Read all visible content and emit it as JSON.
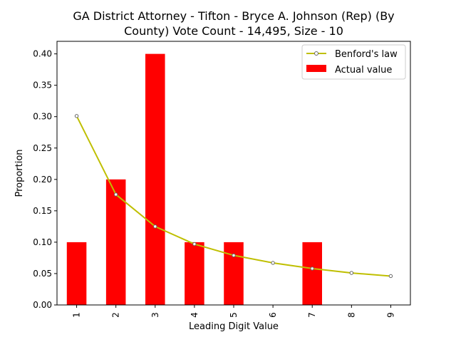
{
  "chart_data": {
    "type": "bar",
    "title_line1": "GA District Attorney - Tifton - Bryce A. Johnson (Rep) (By",
    "title_line2": "County) Vote Count - 14,495, Size - 10",
    "xlabel": "Leading Digit Value",
    "ylabel": "Proportion",
    "categories": [
      "1",
      "2",
      "3",
      "4",
      "5",
      "6",
      "7",
      "8",
      "9"
    ],
    "ylim": [
      0,
      0.42
    ],
    "yticks": [
      "0.00",
      "0.05",
      "0.10",
      "0.15",
      "0.20",
      "0.25",
      "0.30",
      "0.35",
      "0.40"
    ],
    "legend_position": "top-right",
    "series": [
      {
        "name": "Benford's law",
        "kind": "line",
        "color": "#bfbf00",
        "values": [
          0.301,
          0.176,
          0.125,
          0.097,
          0.079,
          0.067,
          0.058,
          0.051,
          0.046
        ]
      },
      {
        "name": "Actual value",
        "kind": "bar",
        "color": "#ff0000",
        "values": [
          0.1,
          0.2,
          0.4,
          0.1,
          0.1,
          0.0,
          0.1,
          0.0,
          0.0
        ]
      }
    ]
  }
}
